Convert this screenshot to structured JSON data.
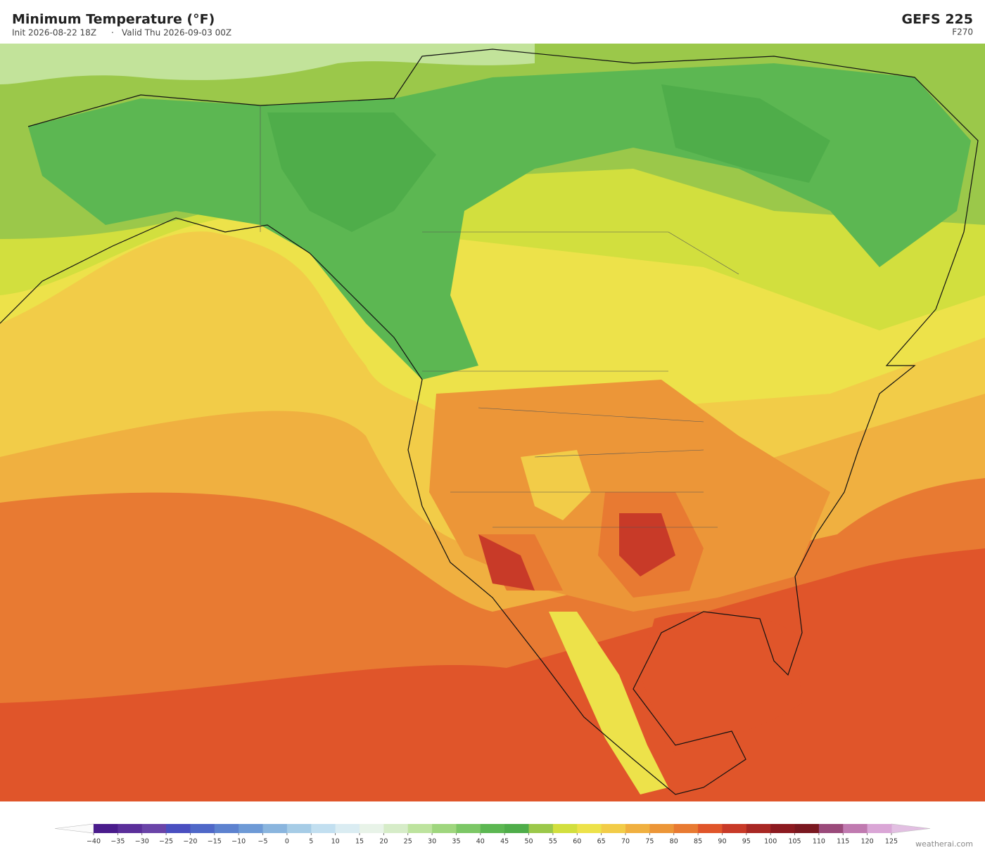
{
  "header": {
    "title": "Minimum Temperature  (°F)",
    "init": "Init 2026-08-22 18Z",
    "separator": "·",
    "valid": "Valid Thu 2026-09-03 00Z",
    "model": "GEFS  225",
    "forecast_hour": "F270"
  },
  "colorbar": {
    "ticks": [
      {
        "value": -40,
        "label": "−40"
      },
      {
        "value": -35,
        "label": "−35"
      },
      {
        "value": -30,
        "label": "−30"
      },
      {
        "value": -25,
        "label": "−25"
      },
      {
        "value": -20,
        "label": "−20"
      },
      {
        "value": -15,
        "label": "−15"
      },
      {
        "value": -10,
        "label": "−10"
      },
      {
        "value": -5,
        "label": "−5"
      },
      0,
      5,
      10,
      15,
      20,
      25,
      30,
      35,
      40,
      45,
      50,
      55,
      60,
      65,
      70,
      75,
      80,
      85,
      90,
      95,
      100,
      105,
      110,
      115,
      120,
      125
    ],
    "colors": [
      "#4a1c8c",
      "#5b2f9a",
      "#6a44a8",
      "#4a4fc0",
      "#4f68c8",
      "#5d82cf",
      "#6e9ad6",
      "#8ab5de",
      "#a6cce6",
      "#c2dff0",
      "#daecf2",
      "#e8f3e8",
      "#d6ecc8",
      "#bde39e",
      "#9fd67e",
      "#7cc766",
      "#5cb752",
      "#4fad4a",
      "#9bc84a",
      "#d2df3e",
      "#ede24a",
      "#f2cc48",
      "#f0b040",
      "#ec9638",
      "#e87a32",
      "#e0552a",
      "#c83a28",
      "#a82824",
      "#8c1a20",
      "#7a1820",
      "#9a4a7a",
      "#c07ab0",
      "#daa6d6"
    ]
  },
  "credit": "weatherai.com"
}
